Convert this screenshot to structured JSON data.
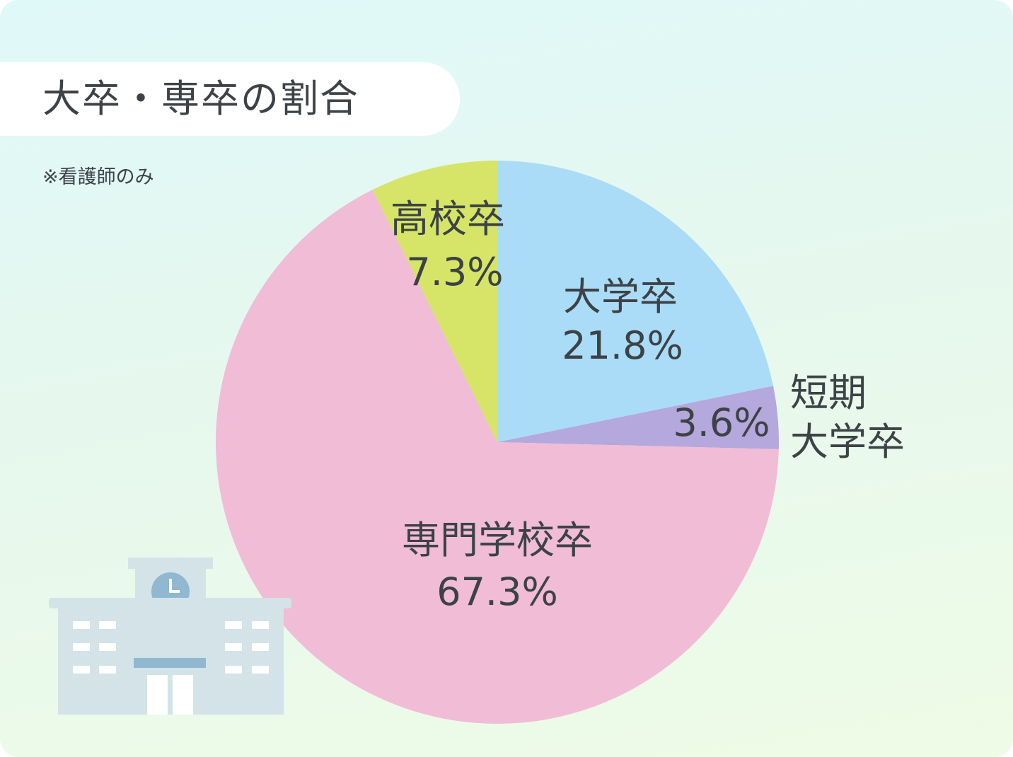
{
  "title": "大卒・専卒の割合",
  "note": "※看護師のみ",
  "chart_data": {
    "type": "pie",
    "title": "大卒・専卒の割合",
    "start_angle_deg": 0,
    "direction": "clockwise",
    "slices": [
      {
        "label": "大学卒",
        "value": 21.8,
        "value_label": "21.8%",
        "color": "#abdcf7"
      },
      {
        "label": "短期大学卒",
        "label_lines": [
          "短期",
          "大学卒"
        ],
        "value": 3.6,
        "value_label": "3.6%",
        "color": "#b5a8dc"
      },
      {
        "label": "専門学校卒",
        "value": 67.3,
        "value_label": "67.3%",
        "color": "#f0bcd6"
      },
      {
        "label": "高校卒",
        "value": 7.3,
        "value_label": "7.3%",
        "color": "#d6e567"
      }
    ]
  },
  "illustration": {
    "name": "school-building-icon",
    "colors": {
      "building": "#d3e3e8",
      "accent": "#90b8d0",
      "window": "#ffffff"
    }
  }
}
